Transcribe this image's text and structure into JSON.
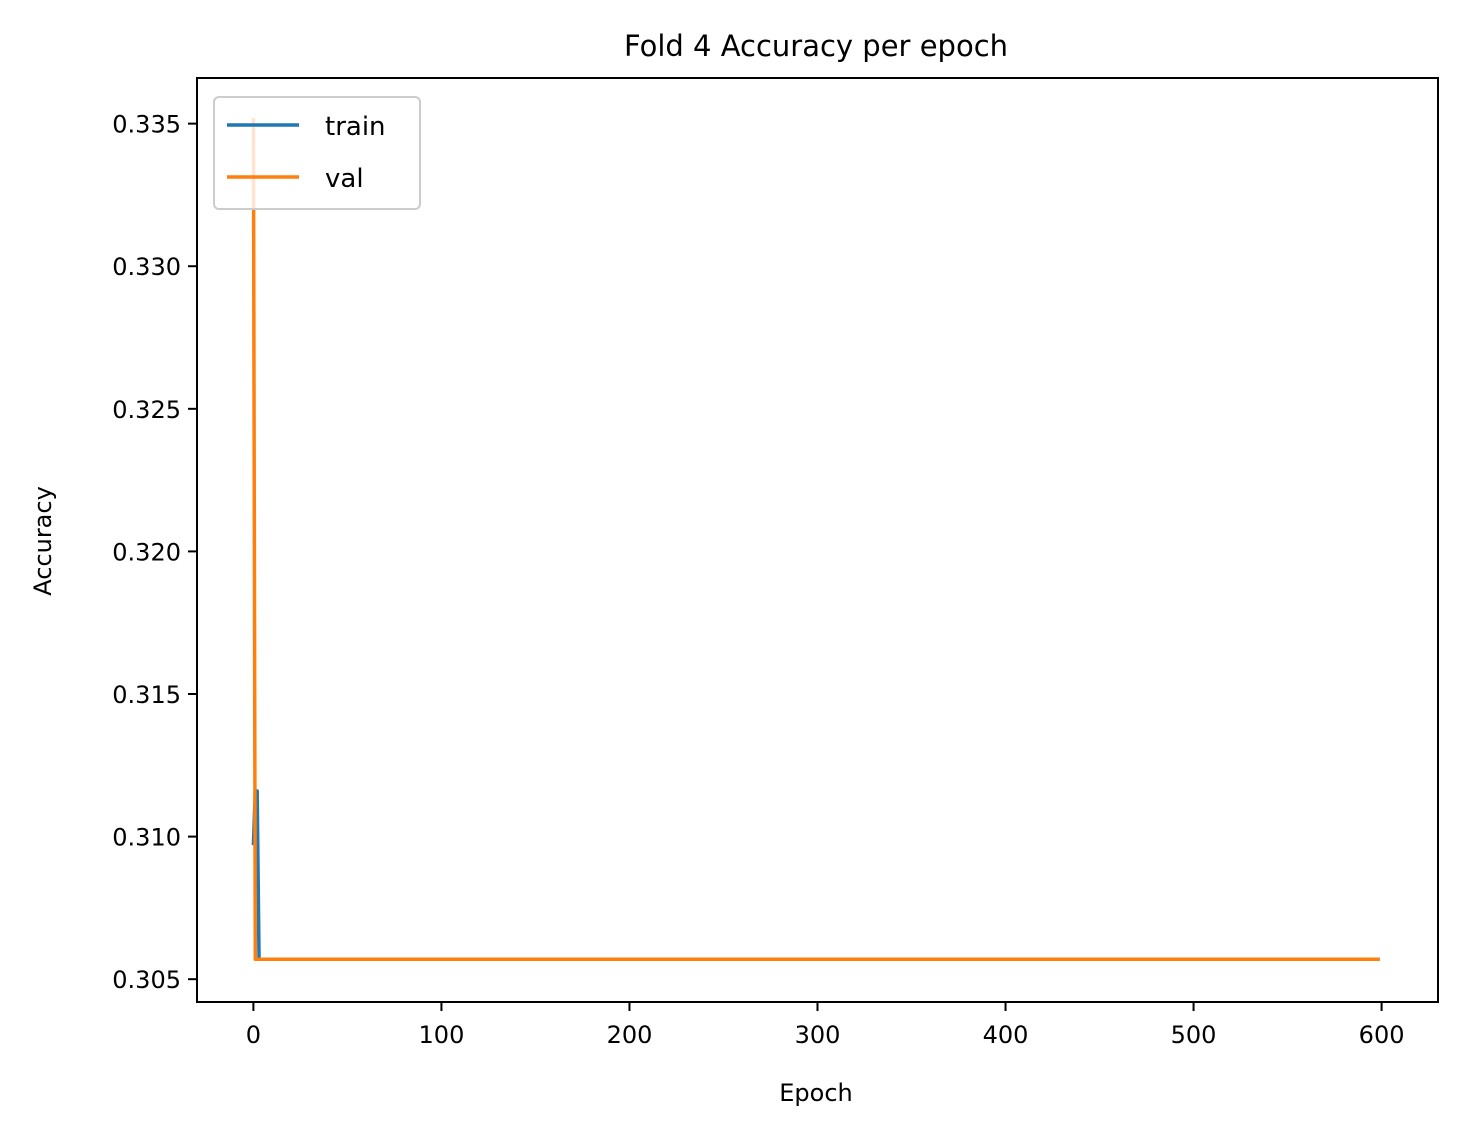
{
  "chart_data": {
    "type": "line",
    "title": "Fold 4 Accuracy per epoch",
    "xlabel": "Epoch",
    "ylabel": "Accuracy",
    "xlim": [
      -30,
      630
    ],
    "ylim": [
      0.3042,
      0.3366
    ],
    "xticks": [
      0,
      100,
      200,
      300,
      400,
      500,
      600
    ],
    "xtick_labels": [
      "0",
      "100",
      "200",
      "300",
      "400",
      "500",
      "600"
    ],
    "yticks": [
      0.305,
      0.31,
      0.315,
      0.32,
      0.325,
      0.33,
      0.335
    ],
    "ytick_labels": [
      "0.305",
      "0.310",
      "0.315",
      "0.320",
      "0.325",
      "0.330",
      "0.335"
    ],
    "grid": false,
    "legend_position": "top-left",
    "series": [
      {
        "name": "train",
        "color": "#1f77b4",
        "x": [
          0,
          1,
          2,
          3,
          599
        ],
        "y": [
          0.3097,
          0.3116,
          0.3116,
          0.3057,
          0.3057
        ]
      },
      {
        "name": "val",
        "color": "#ff7f0e",
        "x": [
          0,
          1,
          599
        ],
        "y": [
          0.3352,
          0.3057,
          0.3057
        ]
      }
    ]
  }
}
